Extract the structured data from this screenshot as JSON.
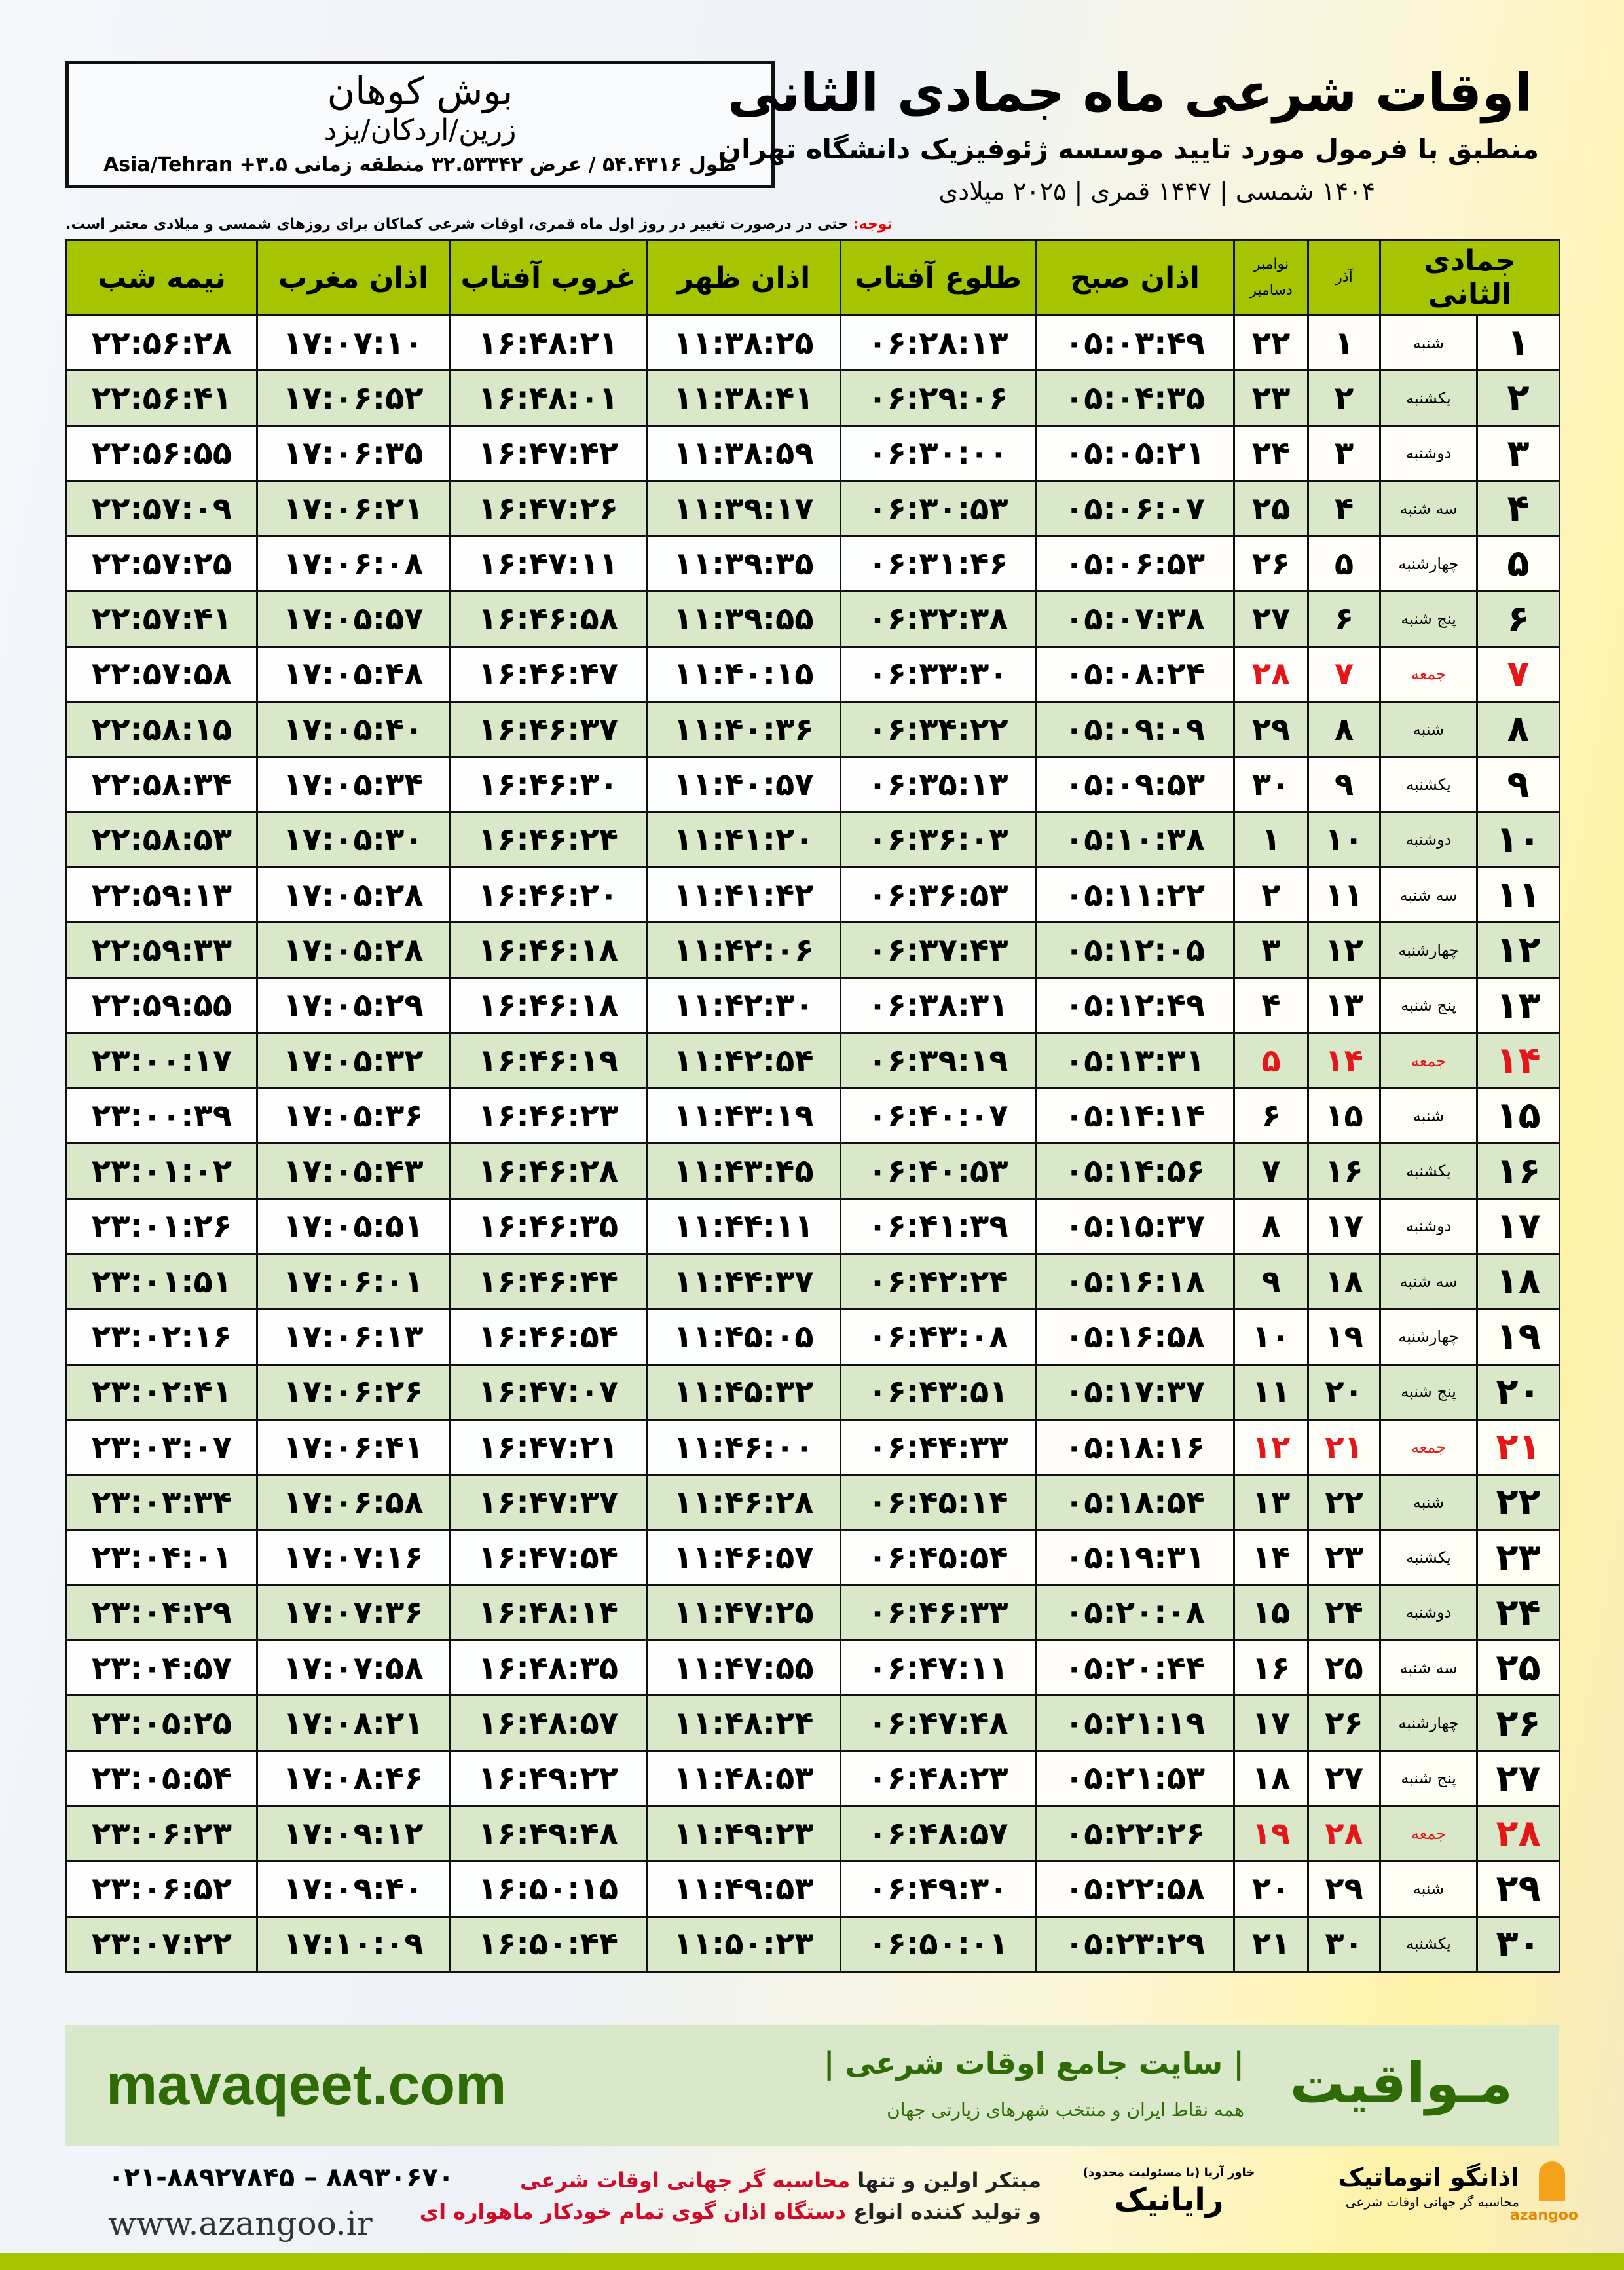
{
  "header": {
    "title": "اوقات شرعی ماه جمادی الثانی",
    "subtitle": "منطبق با فرمول مورد تایید موسسه ژئوفیزیک دانشگاه تهران",
    "dateline": "۱۴۰۴ شمسی | ۱۴۴۷ قمری | ۲۰۲۵ میلادی"
  },
  "location": {
    "city": "بوش کوهان",
    "region": "زرین/اردکان/یزد",
    "coords": "طول ۵۴.۴۳۱۶ / عرض ۳۲.۵۳۳۴۲ منطقه زمانی Asia/Tehran +۳.۵"
  },
  "note": {
    "label": "توجه:",
    "text": " حتی در درصورت تغییر در روز اول ماه قمری، اوقات شرعی کماکان برای روزهای شمسی و میلادی معتبر است."
  },
  "table": {
    "headers": {
      "hijri": "جمادی الثانی",
      "azar": "آذر",
      "greg": "نوامبر دسامبر",
      "fajr": "اذان صبح",
      "sunrise": "طلوع آفتاب",
      "dhuhr": "اذان ظهر",
      "sunset": "غروب آفتاب",
      "maghrib": "اذان مغرب",
      "midnight": "نیمه شب"
    },
    "friday_color": "#e5161a",
    "rows": [
      {
        "n": "۱",
        "day": "شنبه",
        "azar": "۱",
        "greg": "۲۲",
        "fajr": "۰۵:۰۳:۴۹",
        "sunrise": "۰۶:۲۸:۱۳",
        "dhuhr": "۱۱:۳۸:۲۵",
        "sunset": "۱۶:۴۸:۲۱",
        "maghrib": "۱۷:۰۷:۱۰",
        "midnight": "۲۲:۵۶:۲۸"
      },
      {
        "n": "۲",
        "day": "یکشنبه",
        "azar": "۲",
        "greg": "۲۳",
        "fajr": "۰۵:۰۴:۳۵",
        "sunrise": "۰۶:۲۹:۰۶",
        "dhuhr": "۱۱:۳۸:۴۱",
        "sunset": "۱۶:۴۸:۰۱",
        "maghrib": "۱۷:۰۶:۵۲",
        "midnight": "۲۲:۵۶:۴۱"
      },
      {
        "n": "۳",
        "day": "دوشنبه",
        "azar": "۳",
        "greg": "۲۴",
        "fajr": "۰۵:۰۵:۲۱",
        "sunrise": "۰۶:۳۰:۰۰",
        "dhuhr": "۱۱:۳۸:۵۹",
        "sunset": "۱۶:۴۷:۴۲",
        "maghrib": "۱۷:۰۶:۳۵",
        "midnight": "۲۲:۵۶:۵۵"
      },
      {
        "n": "۴",
        "day": "سه شنبه",
        "azar": "۴",
        "greg": "۲۵",
        "fajr": "۰۵:۰۶:۰۷",
        "sunrise": "۰۶:۳۰:۵۳",
        "dhuhr": "۱۱:۳۹:۱۷",
        "sunset": "۱۶:۴۷:۲۶",
        "maghrib": "۱۷:۰۶:۲۱",
        "midnight": "۲۲:۵۷:۰۹"
      },
      {
        "n": "۵",
        "day": "چهارشنبه",
        "azar": "۵",
        "greg": "۲۶",
        "fajr": "۰۵:۰۶:۵۳",
        "sunrise": "۰۶:۳۱:۴۶",
        "dhuhr": "۱۱:۳۹:۳۵",
        "sunset": "۱۶:۴۷:۱۱",
        "maghrib": "۱۷:۰۶:۰۸",
        "midnight": "۲۲:۵۷:۲۵"
      },
      {
        "n": "۶",
        "day": "پنج شنبه",
        "azar": "۶",
        "greg": "۲۷",
        "fajr": "۰۵:۰۷:۳۸",
        "sunrise": "۰۶:۳۲:۳۸",
        "dhuhr": "۱۱:۳۹:۵۵",
        "sunset": "۱۶:۴۶:۵۸",
        "maghrib": "۱۷:۰۵:۵۷",
        "midnight": "۲۲:۵۷:۴۱"
      },
      {
        "n": "۷",
        "day": "جمعه",
        "azar": "۷",
        "greg": "۲۸",
        "fajr": "۰۵:۰۸:۲۴",
        "sunrise": "۰۶:۳۳:۳۰",
        "dhuhr": "۱۱:۴۰:۱۵",
        "sunset": "۱۶:۴۶:۴۷",
        "maghrib": "۱۷:۰۵:۴۸",
        "midnight": "۲۲:۵۷:۵۸"
      },
      {
        "n": "۸",
        "day": "شنبه",
        "azar": "۸",
        "greg": "۲۹",
        "fajr": "۰۵:۰۹:۰۹",
        "sunrise": "۰۶:۳۴:۲۲",
        "dhuhr": "۱۱:۴۰:۳۶",
        "sunset": "۱۶:۴۶:۳۷",
        "maghrib": "۱۷:۰۵:۴۰",
        "midnight": "۲۲:۵۸:۱۵"
      },
      {
        "n": "۹",
        "day": "یکشنبه",
        "azar": "۹",
        "greg": "۳۰",
        "fajr": "۰۵:۰۹:۵۳",
        "sunrise": "۰۶:۳۵:۱۳",
        "dhuhr": "۱۱:۴۰:۵۷",
        "sunset": "۱۶:۴۶:۳۰",
        "maghrib": "۱۷:۰۵:۳۴",
        "midnight": "۲۲:۵۸:۳۴"
      },
      {
        "n": "۱۰",
        "day": "دوشنبه",
        "azar": "۱۰",
        "greg": "۱",
        "fajr": "۰۵:۱۰:۳۸",
        "sunrise": "۰۶:۳۶:۰۳",
        "dhuhr": "۱۱:۴۱:۲۰",
        "sunset": "۱۶:۴۶:۲۴",
        "maghrib": "۱۷:۰۵:۳۰",
        "midnight": "۲۲:۵۸:۵۳"
      },
      {
        "n": "۱۱",
        "day": "سه شنبه",
        "azar": "۱۱",
        "greg": "۲",
        "fajr": "۰۵:۱۱:۲۲",
        "sunrise": "۰۶:۳۶:۵۳",
        "dhuhr": "۱۱:۴۱:۴۲",
        "sunset": "۱۶:۴۶:۲۰",
        "maghrib": "۱۷:۰۵:۲۸",
        "midnight": "۲۲:۵۹:۱۳"
      },
      {
        "n": "۱۲",
        "day": "چهارشنبه",
        "azar": "۱۲",
        "greg": "۳",
        "fajr": "۰۵:۱۲:۰۵",
        "sunrise": "۰۶:۳۷:۴۳",
        "dhuhr": "۱۱:۴۲:۰۶",
        "sunset": "۱۶:۴۶:۱۸",
        "maghrib": "۱۷:۰۵:۲۸",
        "midnight": "۲۲:۵۹:۳۳"
      },
      {
        "n": "۱۳",
        "day": "پنج شنبه",
        "azar": "۱۳",
        "greg": "۴",
        "fajr": "۰۵:۱۲:۴۹",
        "sunrise": "۰۶:۳۸:۳۱",
        "dhuhr": "۱۱:۴۲:۳۰",
        "sunset": "۱۶:۴۶:۱۸",
        "maghrib": "۱۷:۰۵:۲۹",
        "midnight": "۲۲:۵۹:۵۵"
      },
      {
        "n": "۱۴",
        "day": "جمعه",
        "azar": "۱۴",
        "greg": "۵",
        "fajr": "۰۵:۱۳:۳۱",
        "sunrise": "۰۶:۳۹:۱۹",
        "dhuhr": "۱۱:۴۲:۵۴",
        "sunset": "۱۶:۴۶:۱۹",
        "maghrib": "۱۷:۰۵:۳۲",
        "midnight": "۲۳:۰۰:۱۷"
      },
      {
        "n": "۱۵",
        "day": "شنبه",
        "azar": "۱۵",
        "greg": "۶",
        "fajr": "۰۵:۱۴:۱۴",
        "sunrise": "۰۶:۴۰:۰۷",
        "dhuhr": "۱۱:۴۳:۱۹",
        "sunset": "۱۶:۴۶:۲۳",
        "maghrib": "۱۷:۰۵:۳۶",
        "midnight": "۲۳:۰۰:۳۹"
      },
      {
        "n": "۱۶",
        "day": "یکشنبه",
        "azar": "۱۶",
        "greg": "۷",
        "fajr": "۰۵:۱۴:۵۶",
        "sunrise": "۰۶:۴۰:۵۳",
        "dhuhr": "۱۱:۴۳:۴۵",
        "sunset": "۱۶:۴۶:۲۸",
        "maghrib": "۱۷:۰۵:۴۳",
        "midnight": "۲۳:۰۱:۰۲"
      },
      {
        "n": "۱۷",
        "day": "دوشنبه",
        "azar": "۱۷",
        "greg": "۸",
        "fajr": "۰۵:۱۵:۳۷",
        "sunrise": "۰۶:۴۱:۳۹",
        "dhuhr": "۱۱:۴۴:۱۱",
        "sunset": "۱۶:۴۶:۳۵",
        "maghrib": "۱۷:۰۵:۵۱",
        "midnight": "۲۳:۰۱:۲۶"
      },
      {
        "n": "۱۸",
        "day": "سه شنبه",
        "azar": "۱۸",
        "greg": "۹",
        "fajr": "۰۵:۱۶:۱۸",
        "sunrise": "۰۶:۴۲:۲۴",
        "dhuhr": "۱۱:۴۴:۳۷",
        "sunset": "۱۶:۴۶:۴۴",
        "maghrib": "۱۷:۰۶:۰۱",
        "midnight": "۲۳:۰۱:۵۱"
      },
      {
        "n": "۱۹",
        "day": "چهارشنبه",
        "azar": "۱۹",
        "greg": "۱۰",
        "fajr": "۰۵:۱۶:۵۸",
        "sunrise": "۰۶:۴۳:۰۸",
        "dhuhr": "۱۱:۴۵:۰۵",
        "sunset": "۱۶:۴۶:۵۴",
        "maghrib": "۱۷:۰۶:۱۳",
        "midnight": "۲۳:۰۲:۱۶"
      },
      {
        "n": "۲۰",
        "day": "پنج شنبه",
        "azar": "۲۰",
        "greg": "۱۱",
        "fajr": "۰۵:۱۷:۳۷",
        "sunrise": "۰۶:۴۳:۵۱",
        "dhuhr": "۱۱:۴۵:۳۲",
        "sunset": "۱۶:۴۷:۰۷",
        "maghrib": "۱۷:۰۶:۲۶",
        "midnight": "۲۳:۰۲:۴۱"
      },
      {
        "n": "۲۱",
        "day": "جمعه",
        "azar": "۲۱",
        "greg": "۱۲",
        "fajr": "۰۵:۱۸:۱۶",
        "sunrise": "۰۶:۴۴:۳۳",
        "dhuhr": "۱۱:۴۶:۰۰",
        "sunset": "۱۶:۴۷:۲۱",
        "maghrib": "۱۷:۰۶:۴۱",
        "midnight": "۲۳:۰۳:۰۷"
      },
      {
        "n": "۲۲",
        "day": "شنبه",
        "azar": "۲۲",
        "greg": "۱۳",
        "fajr": "۰۵:۱۸:۵۴",
        "sunrise": "۰۶:۴۵:۱۴",
        "dhuhr": "۱۱:۴۶:۲۸",
        "sunset": "۱۶:۴۷:۳۷",
        "maghrib": "۱۷:۰۶:۵۸",
        "midnight": "۲۳:۰۳:۳۴"
      },
      {
        "n": "۲۳",
        "day": "یکشنبه",
        "azar": "۲۳",
        "greg": "۱۴",
        "fajr": "۰۵:۱۹:۳۱",
        "sunrise": "۰۶:۴۵:۵۴",
        "dhuhr": "۱۱:۴۶:۵۷",
        "sunset": "۱۶:۴۷:۵۴",
        "maghrib": "۱۷:۰۷:۱۶",
        "midnight": "۲۳:۰۴:۰۱"
      },
      {
        "n": "۲۴",
        "day": "دوشنبه",
        "azar": "۲۴",
        "greg": "۱۵",
        "fajr": "۰۵:۲۰:۰۸",
        "sunrise": "۰۶:۴۶:۳۳",
        "dhuhr": "۱۱:۴۷:۲۵",
        "sunset": "۱۶:۴۸:۱۴",
        "maghrib": "۱۷:۰۷:۳۶",
        "midnight": "۲۳:۰۴:۲۹"
      },
      {
        "n": "۲۵",
        "day": "سه شنبه",
        "azar": "۲۵",
        "greg": "۱۶",
        "fajr": "۰۵:۲۰:۴۴",
        "sunrise": "۰۶:۴۷:۱۱",
        "dhuhr": "۱۱:۴۷:۵۵",
        "sunset": "۱۶:۴۸:۳۵",
        "maghrib": "۱۷:۰۷:۵۸",
        "midnight": "۲۳:۰۴:۵۷"
      },
      {
        "n": "۲۶",
        "day": "چهارشنبه",
        "azar": "۲۶",
        "greg": "۱۷",
        "fajr": "۰۵:۲۱:۱۹",
        "sunrise": "۰۶:۴۷:۴۸",
        "dhuhr": "۱۱:۴۸:۲۴",
        "sunset": "۱۶:۴۸:۵۷",
        "maghrib": "۱۷:۰۸:۲۱",
        "midnight": "۲۳:۰۵:۲۵"
      },
      {
        "n": "۲۷",
        "day": "پنج شنبه",
        "azar": "۲۷",
        "greg": "۱۸",
        "fajr": "۰۵:۲۱:۵۳",
        "sunrise": "۰۶:۴۸:۲۳",
        "dhuhr": "۱۱:۴۸:۵۳",
        "sunset": "۱۶:۴۹:۲۲",
        "maghrib": "۱۷:۰۸:۴۶",
        "midnight": "۲۳:۰۵:۵۴"
      },
      {
        "n": "۲۸",
        "day": "جمعه",
        "azar": "۲۸",
        "greg": "۱۹",
        "fajr": "۰۵:۲۲:۲۶",
        "sunrise": "۰۶:۴۸:۵۷",
        "dhuhr": "۱۱:۴۹:۲۳",
        "sunset": "۱۶:۴۹:۴۸",
        "maghrib": "۱۷:۰۹:۱۲",
        "midnight": "۲۳:۰۶:۲۳"
      },
      {
        "n": "۲۹",
        "day": "شنبه",
        "azar": "۲۹",
        "greg": "۲۰",
        "fajr": "۰۵:۲۲:۵۸",
        "sunrise": "۰۶:۴۹:۳۰",
        "dhuhr": "۱۱:۴۹:۵۳",
        "sunset": "۱۶:۵۰:۱۵",
        "maghrib": "۱۷:۰۹:۴۰",
        "midnight": "۲۳:۰۶:۵۲"
      },
      {
        "n": "۳۰",
        "day": "یکشنبه",
        "azar": "۳۰",
        "greg": "۲۱",
        "fajr": "۰۵:۲۳:۲۹",
        "sunrise": "۰۶:۵۰:۰۱",
        "dhuhr": "۱۱:۵۰:۲۳",
        "sunset": "۱۶:۵۰:۴۴",
        "maghrib": "۱۷:۱۰:۰۹",
        "midnight": "۲۳:۰۷:۲۲"
      }
    ]
  },
  "banner": {
    "site": "mavaqeet.com",
    "brand": "مـواقیت",
    "slogan": "| سایت جامع اوقات شرعی |",
    "sub": "همه نقاط ایران و منتخب شهرهای زیارتی جهان",
    "brand_color": "#2e6a06"
  },
  "footer": {
    "phone": "۰۲۱-۸۸۹۲۷۸۴۵ – ۸۸۹۳۰۶۷۰",
    "web": "www.azangoo.ir",
    "promo1_a": "مبتکر اولین و تنها ",
    "promo1_b": "محاسبه گر جهانی اوقات شرعی",
    "promo2_a": "و تولید کننده انواع ",
    "promo2_b": "دستگاه اذان گوی تمام خودکار ماهواره ای",
    "logo_rayanik": "رایانیک",
    "logo_rayanik_sub": "خاور آریا (با مسئولیت محدود)",
    "logo_azangoo": "اذانگو اتوماتیک",
    "logo_azangoo_sub": "محاسبه گر جهانی اوقات شرعی",
    "logo_azangoo_en": "azangoo"
  }
}
